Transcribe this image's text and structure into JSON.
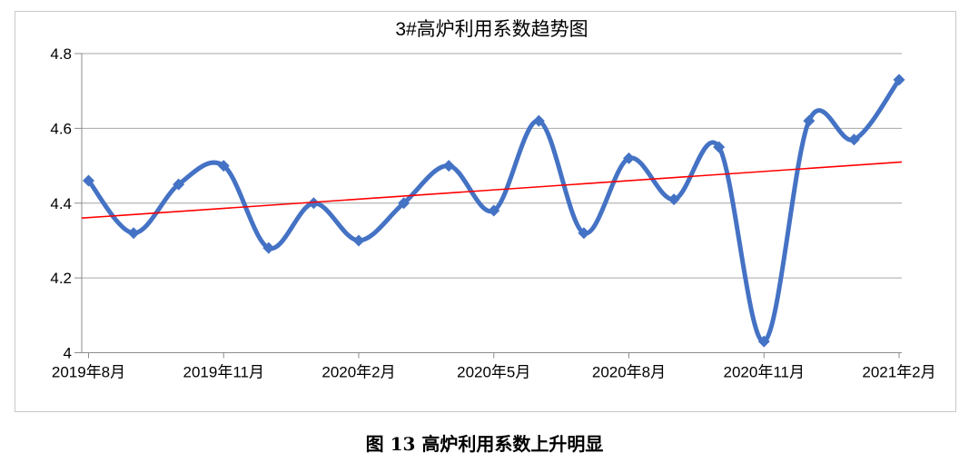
{
  "caption": "图 13 高炉利用系数上升明显",
  "chart_data": {
    "type": "line",
    "title": "3#高炉利用系数趋势图",
    "n_points": 19,
    "values": [
      4.46,
      4.32,
      4.45,
      4.5,
      4.28,
      4.4,
      4.3,
      4.4,
      4.5,
      4.38,
      4.62,
      4.32,
      4.52,
      4.41,
      4.55,
      4.03,
      4.62,
      4.57,
      4.73
    ],
    "x_tick_labels": [
      "2019年8月",
      "2019年11月",
      "2020年2月",
      "2020年5月",
      "2020年8月",
      "2020年11月",
      "2021年2月"
    ],
    "x_tick_indices": [
      0,
      3,
      6,
      9,
      12,
      15,
      18
    ],
    "y_tick_labels": [
      "4.8",
      "4.6",
      "4.4",
      "4.2",
      "4"
    ],
    "y_ticks": [
      4.8,
      4.6,
      4.4,
      4.2,
      4
    ],
    "ylim": [
      4,
      4.8
    ],
    "grid": true,
    "legend": "none",
    "line": {
      "color": "#4472C4",
      "width": 5,
      "smooth": true,
      "marker": "diamond",
      "marker_size": 13
    },
    "trendline": {
      "color": "#FF0000",
      "width": 1.6,
      "start_value": 4.36,
      "end_value": 4.51
    },
    "grid_color": "#a6a6a6",
    "axis_color": "#8c8c8c",
    "tick_label_color": "#000000",
    "border_color": "#c8c8c8"
  }
}
